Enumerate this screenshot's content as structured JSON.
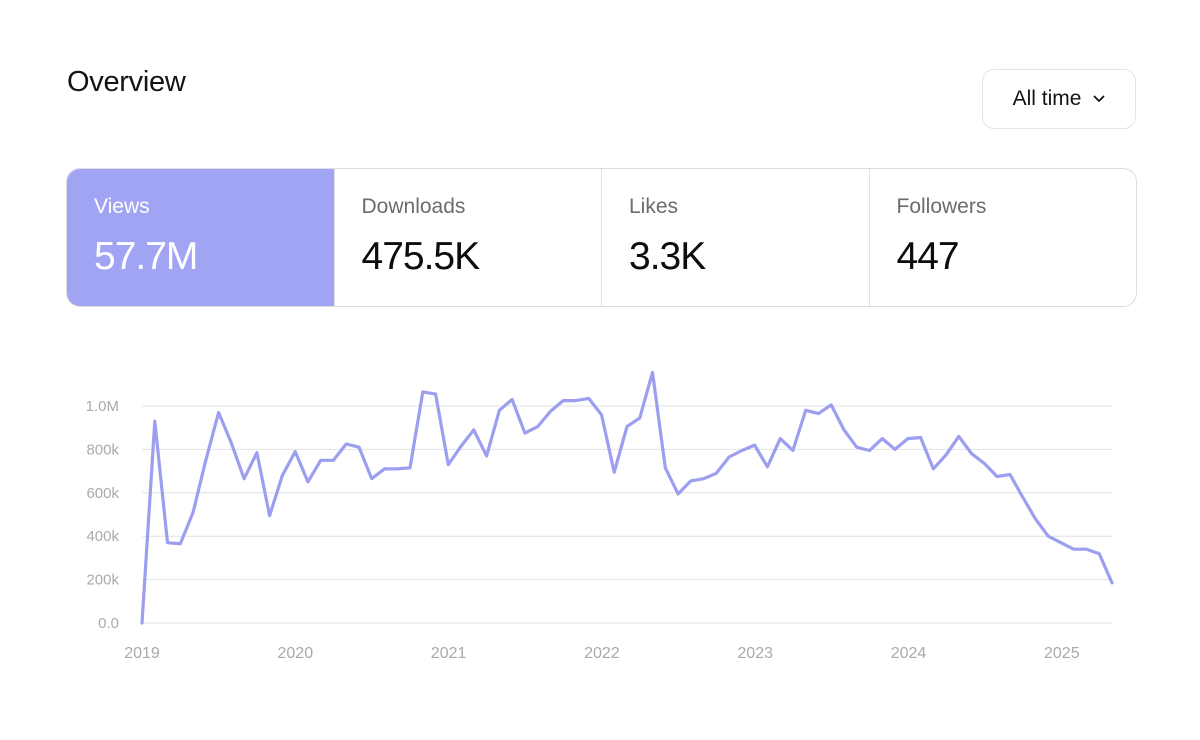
{
  "header": {
    "title": "Overview",
    "range_label": "All time",
    "range_icon": "chevron-down-icon"
  },
  "stats": [
    {
      "label": "Views",
      "value": "57.7M",
      "active": true
    },
    {
      "label": "Downloads",
      "value": "475.5K",
      "active": false
    },
    {
      "label": "Likes",
      "value": "3.3K",
      "active": false
    },
    {
      "label": "Followers",
      "value": "447",
      "active": false
    }
  ],
  "colors": {
    "accent": "#a1a3f3",
    "line": "#9c9ef0"
  },
  "chart_data": {
    "type": "line",
    "title": "",
    "xlabel": "",
    "ylabel": "",
    "ylim": [
      0,
      1000000
    ],
    "y_ticks": [
      0,
      200000,
      400000,
      600000,
      800000,
      1000000
    ],
    "y_tick_labels": [
      "0.0",
      "200k",
      "400k",
      "600k",
      "800k",
      "1.0M"
    ],
    "x_tick_labels": [
      "2019",
      "2020",
      "2021",
      "2022",
      "2023",
      "2024",
      "2025"
    ],
    "grid": true,
    "series": [
      {
        "values": [
          0,
          930000,
          370000,
          365000,
          510000,
          750000,
          970000,
          830000,
          665000,
          785000,
          495000,
          680000,
          790000,
          650000,
          750000,
          750000,
          825000,
          810000,
          665000,
          710000,
          710000,
          715000,
          1065000,
          1055000,
          730000,
          815000,
          890000,
          770000,
          980000,
          1030000,
          875000,
          905000,
          975000,
          1025000,
          1025000,
          1035000,
          960000,
          695000,
          905000,
          945000,
          1155000,
          715000,
          595000,
          655000,
          665000,
          690000,
          765000,
          795000,
          820000,
          720000,
          850000,
          795000,
          980000,
          965000,
          1005000,
          890000,
          810000,
          795000,
          850000,
          800000,
          850000,
          855000,
          710000,
          775000,
          860000,
          780000,
          735000,
          675000,
          685000,
          580000,
          480000,
          400000,
          370000,
          340000,
          340000,
          320000,
          185000
        ]
      }
    ]
  }
}
